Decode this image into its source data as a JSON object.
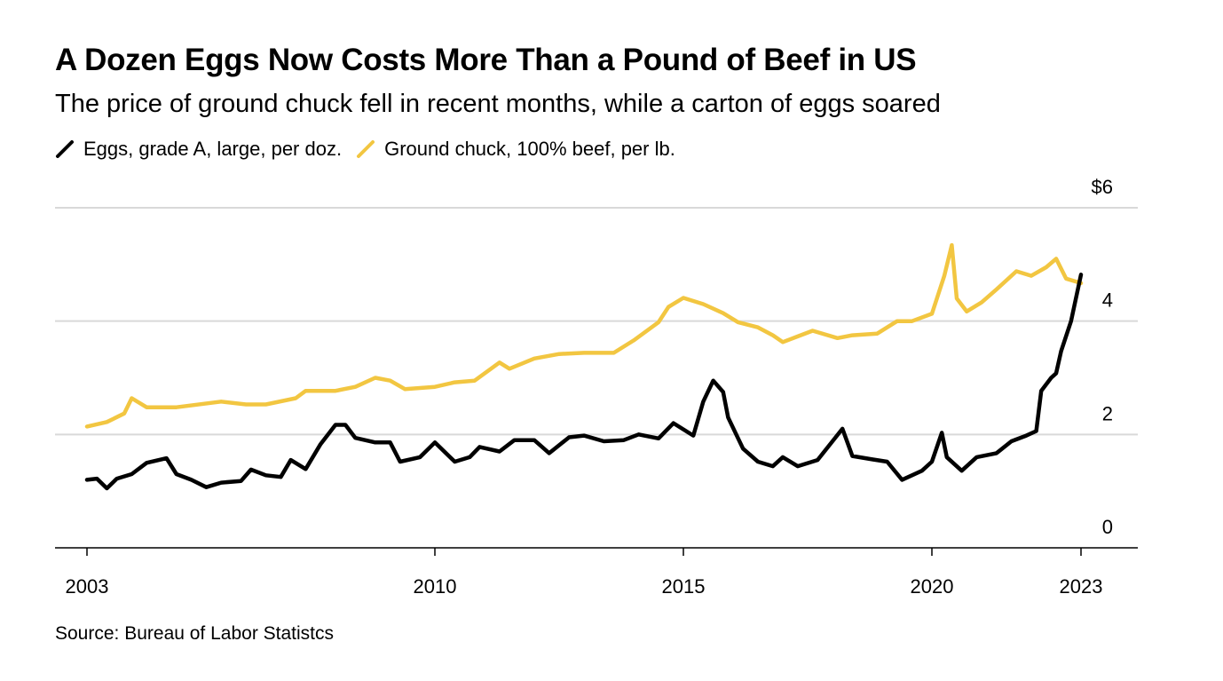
{
  "chart_data": {
    "type": "line",
    "title": "A Dozen Eggs Now Costs More Than a Pound of Beef in US",
    "subtitle": "The price of ground chuck fell in recent months, while a carton of eggs soared",
    "source": "Source: Bureau of Labor Statistcs",
    "xlabel": "",
    "ylabel": "",
    "xlim": [
      2002.4,
      2024.1
    ],
    "ylim": [
      0,
      6
    ],
    "x_ticks": [
      2003,
      2010,
      2015,
      2020,
      2023
    ],
    "x_tick_labels": [
      "2003",
      "2010",
      "2015",
      "2020",
      "2023"
    ],
    "y_ticks": [
      0,
      2,
      4,
      6
    ],
    "y_tick_labels": [
      "0",
      "2",
      "4",
      "$6"
    ],
    "grid": true,
    "legend_position": "top-left",
    "series": [
      {
        "name": "Eggs, grade A, large, per doz.",
        "color": "#000000",
        "points": [
          [
            2003.0,
            1.2
          ],
          [
            2003.2,
            1.22
          ],
          [
            2003.4,
            1.05
          ],
          [
            2003.6,
            1.22
          ],
          [
            2003.9,
            1.3
          ],
          [
            2004.2,
            1.5
          ],
          [
            2004.6,
            1.58
          ],
          [
            2004.8,
            1.3
          ],
          [
            2005.1,
            1.2
          ],
          [
            2005.4,
            1.07
          ],
          [
            2005.7,
            1.15
          ],
          [
            2006.1,
            1.18
          ],
          [
            2006.3,
            1.38
          ],
          [
            2006.6,
            1.28
          ],
          [
            2006.9,
            1.25
          ],
          [
            2007.1,
            1.55
          ],
          [
            2007.4,
            1.39
          ],
          [
            2007.7,
            1.83
          ],
          [
            2008.0,
            2.17
          ],
          [
            2008.2,
            2.17
          ],
          [
            2008.4,
            1.94
          ],
          [
            2008.8,
            1.86
          ],
          [
            2009.1,
            1.86
          ],
          [
            2009.3,
            1.52
          ],
          [
            2009.7,
            1.6
          ],
          [
            2010.0,
            1.86
          ],
          [
            2010.4,
            1.52
          ],
          [
            2010.7,
            1.6
          ],
          [
            2010.9,
            1.78
          ],
          [
            2011.3,
            1.7
          ],
          [
            2011.6,
            1.9
          ],
          [
            2012.0,
            1.9
          ],
          [
            2012.3,
            1.67
          ],
          [
            2012.7,
            1.95
          ],
          [
            2013.0,
            1.98
          ],
          [
            2013.4,
            1.88
          ],
          [
            2013.8,
            1.9
          ],
          [
            2014.1,
            2.0
          ],
          [
            2014.5,
            1.93
          ],
          [
            2014.8,
            2.2
          ],
          [
            2015.2,
            1.98
          ],
          [
            2015.4,
            2.58
          ],
          [
            2015.6,
            2.95
          ],
          [
            2015.8,
            2.75
          ],
          [
            2015.9,
            2.3
          ],
          [
            2016.2,
            1.75
          ],
          [
            2016.5,
            1.52
          ],
          [
            2016.8,
            1.44
          ],
          [
            2017.0,
            1.6
          ],
          [
            2017.3,
            1.44
          ],
          [
            2017.7,
            1.55
          ],
          [
            2018.0,
            1.88
          ],
          [
            2018.2,
            2.1
          ],
          [
            2018.4,
            1.62
          ],
          [
            2018.8,
            1.56
          ],
          [
            2019.1,
            1.52
          ],
          [
            2019.4,
            1.2
          ],
          [
            2019.8,
            1.36
          ],
          [
            2020.0,
            1.52
          ],
          [
            2020.2,
            2.03
          ],
          [
            2020.3,
            1.6
          ],
          [
            2020.6,
            1.36
          ],
          [
            2020.9,
            1.6
          ],
          [
            2021.3,
            1.67
          ],
          [
            2021.6,
            1.88
          ],
          [
            2021.9,
            1.98
          ],
          [
            2022.1,
            2.06
          ],
          [
            2022.2,
            2.77
          ],
          [
            2022.4,
            3.0
          ],
          [
            2022.5,
            3.08
          ],
          [
            2022.6,
            3.47
          ],
          [
            2022.8,
            4.0
          ],
          [
            2023.0,
            4.82
          ]
        ]
      },
      {
        "name": "Ground chuck, 100% beef, per lb.",
        "color": "#f2c641",
        "points": [
          [
            2003.0,
            2.14
          ],
          [
            2003.4,
            2.22
          ],
          [
            2003.75,
            2.37
          ],
          [
            2003.9,
            2.64
          ],
          [
            2004.2,
            2.48
          ],
          [
            2004.8,
            2.48
          ],
          [
            2005.7,
            2.58
          ],
          [
            2006.2,
            2.53
          ],
          [
            2006.6,
            2.53
          ],
          [
            2007.2,
            2.64
          ],
          [
            2007.4,
            2.77
          ],
          [
            2008.0,
            2.77
          ],
          [
            2008.4,
            2.84
          ],
          [
            2008.8,
            3.0
          ],
          [
            2009.1,
            2.95
          ],
          [
            2009.4,
            2.8
          ],
          [
            2010.0,
            2.84
          ],
          [
            2010.4,
            2.92
          ],
          [
            2010.8,
            2.95
          ],
          [
            2011.3,
            3.27
          ],
          [
            2011.5,
            3.16
          ],
          [
            2012.0,
            3.34
          ],
          [
            2012.5,
            3.42
          ],
          [
            2013.0,
            3.44
          ],
          [
            2013.6,
            3.44
          ],
          [
            2014.0,
            3.66
          ],
          [
            2014.5,
            3.98
          ],
          [
            2014.7,
            4.25
          ],
          [
            2015.0,
            4.41
          ],
          [
            2015.4,
            4.3
          ],
          [
            2015.8,
            4.14
          ],
          [
            2016.1,
            3.98
          ],
          [
            2016.5,
            3.89
          ],
          [
            2016.8,
            3.75
          ],
          [
            2017.0,
            3.63
          ],
          [
            2017.3,
            3.73
          ],
          [
            2017.6,
            3.83
          ],
          [
            2018.1,
            3.7
          ],
          [
            2018.4,
            3.75
          ],
          [
            2018.9,
            3.78
          ],
          [
            2019.3,
            4.0
          ],
          [
            2019.6,
            4.0
          ],
          [
            2020.0,
            4.13
          ],
          [
            2020.25,
            4.8
          ],
          [
            2020.4,
            5.34
          ],
          [
            2020.5,
            4.4
          ],
          [
            2020.7,
            4.17
          ],
          [
            2021.0,
            4.33
          ],
          [
            2021.3,
            4.56
          ],
          [
            2021.7,
            4.88
          ],
          [
            2022.0,
            4.8
          ],
          [
            2022.3,
            4.95
          ],
          [
            2022.5,
            5.1
          ],
          [
            2022.7,
            4.75
          ],
          [
            2023.0,
            4.67
          ]
        ]
      }
    ]
  }
}
